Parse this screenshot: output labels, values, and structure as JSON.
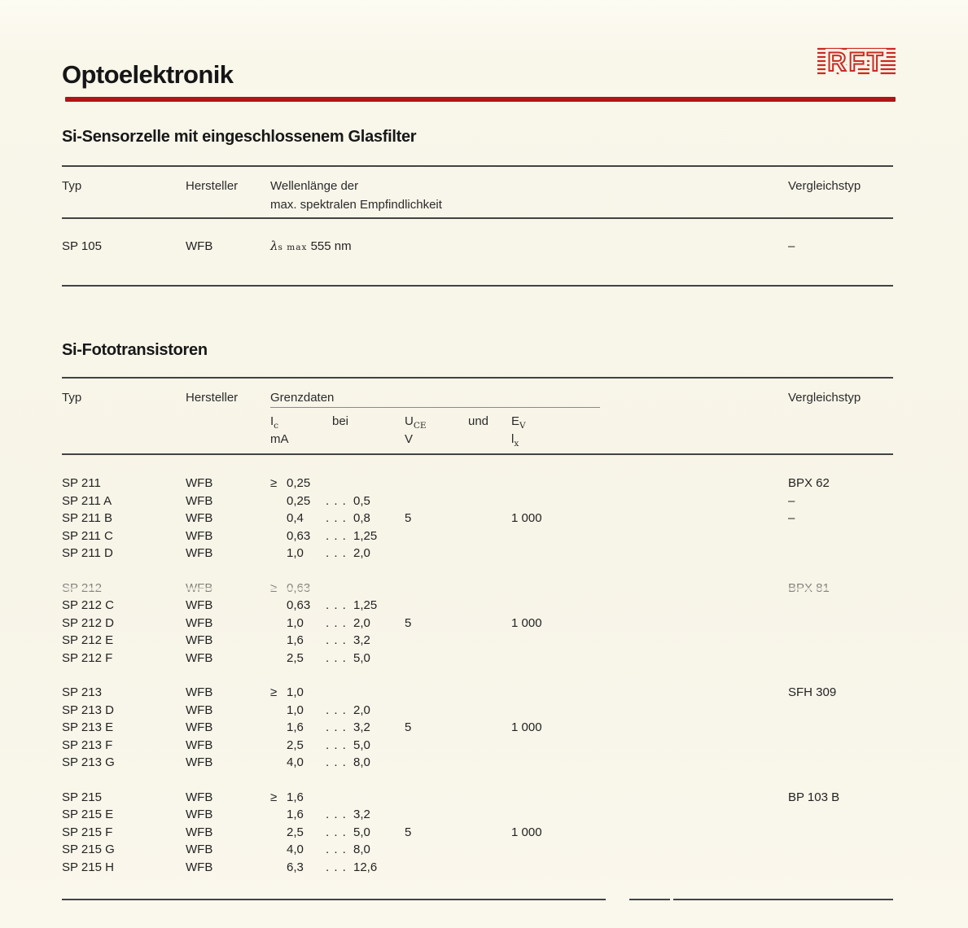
{
  "header": {
    "title": "Optoelektronik",
    "logo_text": "RFT"
  },
  "colors": {
    "rule_red": "#b01419",
    "logo_red": "#cb2a22",
    "paper": "#f7f4e8",
    "ink": "#232323"
  },
  "sensor_table": {
    "heading": "Si-Sensorzelle mit eingeschlossenem Glasfilter",
    "col_typ": "Typ",
    "col_hersteller": "Hersteller",
    "col_wellenlaenge_1": "Wellenlänge der",
    "col_wellenlaenge_2": "max. spektralen Empfindlichkeit",
    "col_vergleichstyp": "Vergleichstyp",
    "row": {
      "typ": "SP 105",
      "hersteller": "WFB",
      "lambda": "λ",
      "lambda_sub": "s max",
      "wert": "555 nm",
      "vergleichstyp": "–"
    }
  },
  "transistor_table": {
    "heading": "Si-Fototransistoren",
    "col_typ": "Typ",
    "col_hersteller": "Hersteller",
    "col_grenzdaten": "Grenzdaten",
    "col_vergleichstyp": "Vergleichstyp",
    "sub_ic": "I",
    "sub_ic_sub": "c",
    "sub_ic_unit": "mA",
    "sub_bei": "bei",
    "sub_uce": "U",
    "sub_uce_sub": "CE",
    "sub_uce_unit": "V",
    "sub_und": "und",
    "sub_ev": "E",
    "sub_ev_sub": "V",
    "sub_ev_unit": "l",
    "sub_ev_unit_sub": "x",
    "groups": [
      [
        {
          "typ": "SP 211",
          "her": "WFB",
          "ge": "≥",
          "min": "0,25",
          "dots": "",
          "max": "",
          "uce": "",
          "ev": "",
          "vt": "BPX 62"
        },
        {
          "typ": "SP 211 A",
          "her": "WFB",
          "ge": "",
          "min": "0,25",
          "dots": ". . .",
          "max": "0,5",
          "uce": "",
          "ev": "",
          "vt": "–"
        },
        {
          "typ": "SP 211 B",
          "her": "WFB",
          "ge": "",
          "min": "0,4",
          "dots": ". . .",
          "max": "0,8",
          "uce": "5",
          "ev": "1 000",
          "vt": "–"
        },
        {
          "typ": "SP 211 C",
          "her": "WFB",
          "ge": "",
          "min": "0,63",
          "dots": ". . .",
          "max": "1,25",
          "uce": "",
          "ev": "",
          "vt": ""
        },
        {
          "typ": "SP 211 D",
          "her": "WFB",
          "ge": "",
          "min": "1,0",
          "dots": ". . .",
          "max": "2,0",
          "uce": "",
          "ev": "",
          "vt": ""
        }
      ],
      [
        {
          "typ": "SP 212",
          "her": "WFB",
          "ge": "≥",
          "min": "0,63",
          "dots": "",
          "max": "",
          "uce": "",
          "ev": "",
          "vt": "BPX 81",
          "faded": true
        },
        {
          "typ": "SP 212 C",
          "her": "WFB",
          "ge": "",
          "min": "0,63",
          "dots": ". . .",
          "max": "1,25",
          "uce": "",
          "ev": "",
          "vt": ""
        },
        {
          "typ": "SP 212 D",
          "her": "WFB",
          "ge": "",
          "min": "1,0",
          "dots": ". . .",
          "max": "2,0",
          "uce": "5",
          "ev": "1 000",
          "vt": ""
        },
        {
          "typ": "SP 212 E",
          "her": "WFB",
          "ge": "",
          "min": "1,6",
          "dots": ". . .",
          "max": "3,2",
          "uce": "",
          "ev": "",
          "vt": ""
        },
        {
          "typ": "SP 212 F",
          "her": "WFB",
          "ge": "",
          "min": "2,5",
          "dots": ". . .",
          "max": "5,0",
          "uce": "",
          "ev": "",
          "vt": ""
        }
      ],
      [
        {
          "typ": "SP 213",
          "her": "WFB",
          "ge": "≥",
          "min": "1,0",
          "dots": "",
          "max": "",
          "uce": "",
          "ev": "",
          "vt": "SFH 309"
        },
        {
          "typ": "SP 213 D",
          "her": "WFB",
          "ge": "",
          "min": "1,0",
          "dots": ". . .",
          "max": "2,0",
          "uce": "",
          "ev": "",
          "vt": ""
        },
        {
          "typ": "SP 213 E",
          "her": "WFB",
          "ge": "",
          "min": "1,6",
          "dots": ". . .",
          "max": "3,2",
          "uce": "5",
          "ev": "1 000",
          "vt": ""
        },
        {
          "typ": "SP 213 F",
          "her": "WFB",
          "ge": "",
          "min": "2,5",
          "dots": ". . .",
          "max": "5,0",
          "uce": "",
          "ev": "",
          "vt": ""
        },
        {
          "typ": "SP 213 G",
          "her": "WFB",
          "ge": "",
          "min": "4,0",
          "dots": ". . .",
          "max": "8,0",
          "uce": "",
          "ev": "",
          "vt": ""
        }
      ],
      [
        {
          "typ": "SP 215",
          "her": "WFB",
          "ge": "≥",
          "min": "1,6",
          "dots": "",
          "max": "",
          "uce": "",
          "ev": "",
          "vt": "BP 103 B"
        },
        {
          "typ": "SP 215 E",
          "her": "WFB",
          "ge": "",
          "min": "1,6",
          "dots": ". . .",
          "max": "3,2",
          "uce": "",
          "ev": "",
          "vt": ""
        },
        {
          "typ": "SP 215 F",
          "her": "WFB",
          "ge": "",
          "min": "2,5",
          "dots": ". . .",
          "max": "5,0",
          "uce": "5",
          "ev": "1 000",
          "vt": ""
        },
        {
          "typ": "SP 215 G",
          "her": "WFB",
          "ge": "",
          "min": "4,0",
          "dots": ". . .",
          "max": "8,0",
          "uce": "",
          "ev": "",
          "vt": ""
        },
        {
          "typ": "SP 215 H",
          "her": "WFB",
          "ge": "",
          "min": "6,3",
          "dots": ". . .",
          "max": "12,6",
          "uce": "",
          "ev": "",
          "vt": ""
        }
      ]
    ]
  }
}
